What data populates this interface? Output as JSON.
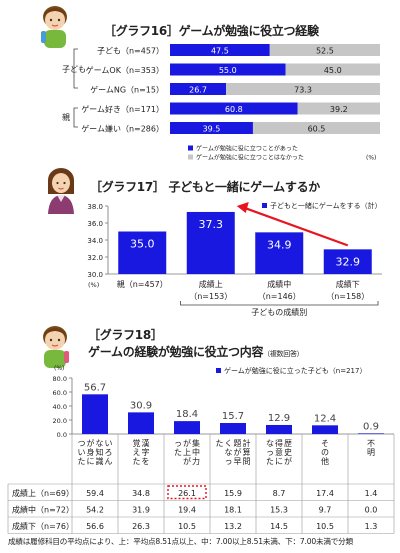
{
  "g16": {
    "title": "［グラフ16］ゲームが勉強に役立つ経験",
    "group_child": "子ども",
    "group_parent": "親",
    "rows": [
      {
        "label": "子ども（n=457）",
        "yes": 47.5,
        "no": 52.5
      },
      {
        "label": "ゲームOK（n=353）",
        "yes": 55.0,
        "no": 45.0
      },
      {
        "label": "ゲームNG（n=15）",
        "yes": 26.7,
        "no": 73.3
      },
      {
        "label": "ゲーム好き（n=171）",
        "yes": 60.8,
        "no": 39.2
      },
      {
        "label": "ゲーム嫌い（n=286）",
        "yes": 39.5,
        "no": 60.5
      }
    ],
    "yes_text": [
      "47.5",
      "55.0",
      "26.7",
      "60.8",
      "39.5"
    ],
    "no_text": [
      "52.5",
      "45.0",
      "73.3",
      "39.2",
      "60.5"
    ],
    "legend_yes": "ゲームが勉強に役に立つことがあった",
    "legend_no": "ゲームが勉強に役に立つことはなかった",
    "unit": "(%)",
    "colors": {
      "yes": "#1818e0",
      "no": "#c6c6c6"
    }
  },
  "g17": {
    "title": "［グラフ17］ 子どもと一緒にゲームするか",
    "legend": "子どもと一緒にゲームをする（計）",
    "unit": "(%)",
    "yticks": [
      "38.0",
      "36.0",
      "34.0",
      "32.0",
      "30.0"
    ],
    "categories": [
      "親（n=457）",
      "成績上",
      "成績中",
      "成績下"
    ],
    "cat_n": [
      "",
      "（n=153）",
      "（n=146）",
      "（n=158）"
    ],
    "value_text": [
      "35.0",
      "37.3",
      "34.9",
      "32.9"
    ],
    "sublabel": "子どもの成績別",
    "colors": {
      "bar": "#1818e0",
      "arrow": "#e8141e"
    }
  },
  "g18": {
    "title1": "［グラフ18］",
    "title2": "ゲームの経験が勉強に役立つ内容",
    "title_note": "（複数回答）",
    "legend": "ゲームが勉強に役に立った子ども（n=217）",
    "unit": "(%)",
    "yticks": [
      "80.0",
      "60.0",
      "40.0",
      "20.0",
      "0.0"
    ],
    "categories": [
      "いろんな知識が身についた",
      "漢字を覚えた",
      "集中力が上がった",
      "計算問題が早くなった",
      "歴史が得意になった",
      "その他",
      "不明"
    ],
    "value_text": [
      "56.7",
      "30.9",
      "18.4",
      "15.7",
      "12.9",
      "12.4",
      "0.9"
    ],
    "table": [
      {
        "label": "成績上（n=69）",
        "values": [
          "59.4",
          "34.8",
          "26.1",
          "15.9",
          "8.7",
          "17.4",
          "1.4"
        ]
      },
      {
        "label": "成績中（n=72）",
        "values": [
          "54.2",
          "31.9",
          "19.4",
          "18.1",
          "15.3",
          "9.7",
          "0.0"
        ]
      },
      {
        "label": "成績下（n=76）",
        "values": [
          "56.6",
          "26.3",
          "10.5",
          "13.2",
          "14.5",
          "10.5",
          "1.3"
        ]
      }
    ],
    "highlight_color": "#e8141e"
  },
  "footnote": "成績は履修科目の平均点により、上：平均点8.51点以上、中：7.00以上8.51未満、下：7.00未満で分類",
  "chart_data": [
    {
      "type": "bar",
      "orientation": "horizontal-stacked-100",
      "title": "［グラフ16］ゲームが勉強に役立つ経験",
      "categories": [
        "子ども（n=457）",
        "ゲームOK（n=353）",
        "ゲームNG（n=15）",
        "ゲーム好き（n=171）",
        "ゲーム嫌い（n=286）"
      ],
      "series": [
        {
          "name": "ゲームが勉強に役に立つことがあった",
          "values": [
            47.5,
            55.0,
            26.7,
            60.8,
            39.5
          ]
        },
        {
          "name": "ゲームが勉強に役に立つことはなかった",
          "values": [
            52.5,
            45.0,
            73.3,
            39.2,
            60.5
          ]
        }
      ],
      "xlim": [
        0,
        100
      ]
    },
    {
      "type": "bar",
      "title": "［グラフ17］ 子どもと一緒にゲームするか",
      "categories": [
        "親（n=457）",
        "成績上（n=153）",
        "成績中（n=146）",
        "成績下（n=158）"
      ],
      "series": [
        {
          "name": "子どもと一緒にゲームをする（計）",
          "values": [
            35.0,
            37.3,
            34.9,
            32.9
          ]
        }
      ],
      "ylim": [
        30,
        38
      ],
      "annotation": "arrow from 成績下 to 成績上"
    },
    {
      "type": "bar",
      "title": "［グラフ18］ゲームの経験が勉強に役立つ内容",
      "categories": [
        "いろんな知識が身についた",
        "漢字を覚えた",
        "集中力が上がった",
        "計算問題が早くなった",
        "歴史が得意になった",
        "その他",
        "不明"
      ],
      "series": [
        {
          "name": "ゲームが勉強に役に立った子ども（n=217）",
          "values": [
            56.7,
            30.9,
            18.4,
            15.7,
            12.9,
            12.4,
            0.9
          ]
        },
        {
          "name": "成績上（n=69）",
          "values": [
            59.4,
            34.8,
            26.1,
            15.9,
            8.7,
            17.4,
            1.4
          ]
        },
        {
          "name": "成績中（n=72）",
          "values": [
            54.2,
            31.9,
            19.4,
            18.1,
            15.3,
            9.7,
            0.0
          ]
        },
        {
          "name": "成績下（n=76）",
          "values": [
            56.6,
            26.3,
            10.5,
            13.2,
            14.5,
            10.5,
            1.3
          ]
        }
      ],
      "ylim": [
        0,
        80
      ]
    }
  ]
}
